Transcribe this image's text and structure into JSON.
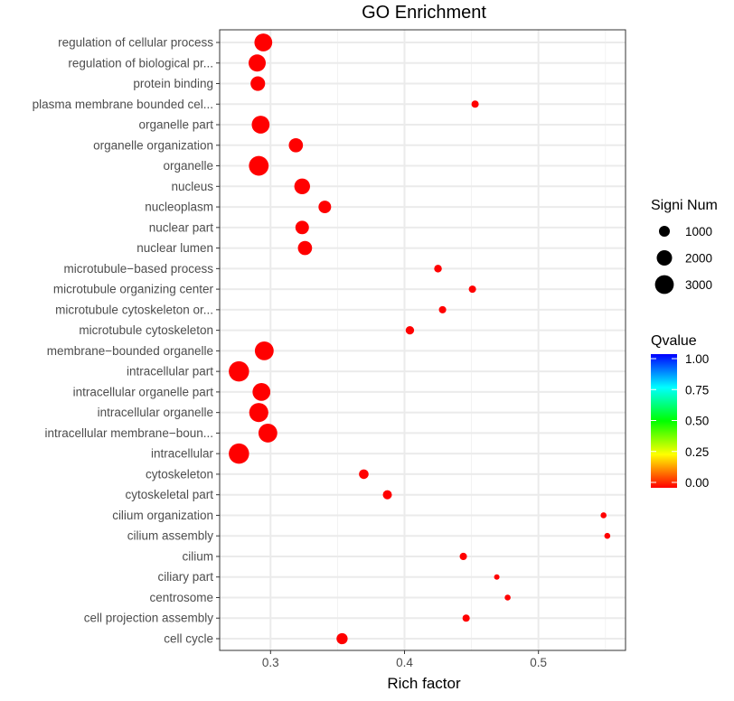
{
  "chart_data": {
    "type": "scatter",
    "title": "GO Enrichment",
    "xlabel": "Rich factor",
    "ylabel": "",
    "xlim": [
      0.262,
      0.565
    ],
    "x_ticks": [
      0.3,
      0.4,
      0.5
    ],
    "x_tick_labels": [
      "0.3",
      "0.4",
      "0.5"
    ],
    "grid": true,
    "point_color": "#ff0000",
    "categories": [
      "regulation of cellular process",
      "regulation of biological pr...",
      "protein binding",
      "plasma membrane bounded cel...",
      "organelle part",
      "organelle organization",
      "organelle",
      "nucleus",
      "nucleoplasm",
      "nuclear part",
      "nuclear lumen",
      "microtubule−based process",
      "microtubule organizing center",
      "microtubule cytoskeleton or...",
      "microtubule cytoskeleton",
      "membrane−bounded organelle",
      "intracellular part",
      "intracellular organelle part",
      "intracellular organelle",
      "intracellular membrane−boun...",
      "intracellular",
      "cytoskeleton",
      "cytoskeletal part",
      "cilium organization",
      "cilium assembly",
      "cilium",
      "ciliary part",
      "centrosome",
      "cell projection assembly",
      "cell cycle"
    ],
    "rich_factor": [
      0.2946,
      0.29,
      0.2905,
      0.4527,
      0.2926,
      0.3189,
      0.2912,
      0.3236,
      0.3405,
      0.3236,
      0.3257,
      0.425,
      0.4507,
      0.4284,
      0.404,
      0.2953,
      0.2764,
      0.2932,
      0.2912,
      0.298,
      0.2764,
      0.3696,
      0.3872,
      0.5486,
      0.5514,
      0.4439,
      0.4689,
      0.477,
      0.446,
      0.3534
    ],
    "signi_num": [
      2700,
      2500,
      1800,
      450,
      2700,
      1700,
      3300,
      2100,
      1350,
      1550,
      1700,
      500,
      450,
      450,
      600,
      3000,
      3500,
      2700,
      3100,
      3000,
      3500,
      780,
      700,
      300,
      300,
      450,
      250,
      300,
      450,
      1050
    ],
    "qvalue": [
      0,
      0,
      0,
      0,
      0,
      0,
      0,
      0,
      0,
      0,
      0,
      0,
      0,
      0,
      0,
      0,
      0,
      0,
      0,
      0,
      0,
      0,
      0,
      0,
      0,
      0,
      0,
      0,
      0,
      0
    ],
    "legend_size": {
      "title": "Signi Num",
      "values": [
        1000,
        2000,
        3000
      ],
      "labels": [
        "1000",
        "2000",
        "3000"
      ]
    },
    "legend_color": {
      "title": "Qvalue",
      "range": [
        0,
        1
      ],
      "labels": [
        "1.00",
        "0.75",
        "0.50",
        "0.25",
        "0.00"
      ],
      "colors": [
        "#ff0000",
        "#ffff00",
        "#00ff00",
        "#00ffff",
        "#0000ff"
      ]
    },
    "legend_placement": "right"
  }
}
